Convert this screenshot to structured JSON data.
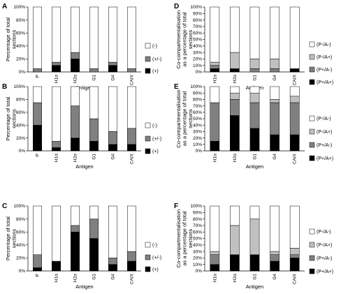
{
  "colors": {
    "(-)": "#ffffff",
    "(+/-)": "#808080",
    "(+)": "#000000",
    "(P-/A-)": "#ffffff",
    "(P-/A+)": "#c0c0c0",
    "(P+/A-)": "#808080",
    "(P+/A+)": "#000000"
  },
  "chart_data": [
    {
      "panel": "A",
      "type": "bar",
      "stacked": true,
      "categories": [
        "P",
        "H1α",
        "H2α",
        "G1",
        "G4",
        "CAIX"
      ],
      "xlabel": "Antigen",
      "ylabel": "Percentage of total sections",
      "ylim": [
        0,
        100
      ],
      "yticks": [
        "0%",
        "20%",
        "40%",
        "60%",
        "80%",
        "100%"
      ],
      "legend": [
        "(-)",
        "(+/-)",
        "(+)"
      ],
      "series": [
        {
          "name": "(+)",
          "values": [
            0,
            10,
            20,
            0,
            10,
            0
          ]
        },
        {
          "name": "(+/-)",
          "values": [
            5,
            5,
            10,
            5,
            5,
            5
          ]
        },
        {
          "name": "(-)",
          "values": [
            95,
            85,
            70,
            95,
            85,
            95
          ]
        }
      ]
    },
    {
      "panel": "B",
      "type": "bar",
      "stacked": true,
      "categories": [
        "P",
        "H1α",
        "H2α",
        "G1",
        "G4",
        "CAIX"
      ],
      "xlabel": "Antigen",
      "ylabel": "Percentage of total sections",
      "ylim": [
        0,
        100
      ],
      "yticks": [
        "0%",
        "20%",
        "40%",
        "60%",
        "80%",
        "100%"
      ],
      "legend": [
        "(-)",
        "(+/-)",
        "(+)"
      ],
      "series": [
        {
          "name": "(+)",
          "values": [
            40,
            5,
            20,
            15,
            10,
            10
          ]
        },
        {
          "name": "(+/-)",
          "values": [
            35,
            10,
            50,
            35,
            20,
            25
          ]
        },
        {
          "name": "(-)",
          "values": [
            25,
            85,
            30,
            50,
            70,
            65
          ]
        }
      ]
    },
    {
      "panel": "C",
      "type": "bar",
      "stacked": true,
      "categories": [
        "P",
        "H1α",
        "H2α",
        "G1",
        "G4",
        "CAIX"
      ],
      "xlabel": "Antigen",
      "ylabel": "Percentage of total sections",
      "ylim": [
        0,
        100
      ],
      "yticks": [
        "0%",
        "20%",
        "40%",
        "60%",
        "80%",
        "100%"
      ],
      "legend": [
        "(-)",
        "(+/-)",
        "(+)"
      ],
      "series": [
        {
          "name": "(+)",
          "values": [
            5,
            15,
            60,
            50,
            10,
            15
          ]
        },
        {
          "name": "(+/-)",
          "values": [
            20,
            0,
            10,
            30,
            10,
            15
          ]
        },
        {
          "name": "(-)",
          "values": [
            75,
            85,
            30,
            20,
            80,
            70
          ]
        }
      ]
    },
    {
      "panel": "D",
      "type": "bar",
      "stacked": true,
      "categories": [
        "H1α",
        "H2α",
        "G1",
        "G4",
        "CAIX"
      ],
      "xlabel": "Antigen",
      "ylabel": "Co-compartmentalisation as a percentage of total sections",
      "ylim": [
        0,
        100
      ],
      "yticks": [
        "0%",
        "10%",
        "20%",
        "30%",
        "40%",
        "50%",
        "60%",
        "70%",
        "80%",
        "90%",
        "100%"
      ],
      "legend": [
        "(P-/A-)",
        "(P-/A+)",
        "(P+/A-)",
        "(P+/A+)"
      ],
      "series": [
        {
          "name": "(P+/A+)",
          "values": [
            5,
            5,
            0,
            0,
            5
          ]
        },
        {
          "name": "(P+/A-)",
          "values": [
            5,
            0,
            5,
            5,
            0
          ]
        },
        {
          "name": "(P-/A+)",
          "values": [
            5,
            25,
            15,
            15,
            0
          ]
        },
        {
          "name": "(P-/A-)",
          "values": [
            85,
            70,
            80,
            80,
            95
          ]
        }
      ]
    },
    {
      "panel": "E",
      "type": "bar",
      "stacked": true,
      "categories": [
        "H1α",
        "H2α",
        "G1",
        "G4",
        "CAIX"
      ],
      "xlabel": "Antigen",
      "ylabel": "Co-compartmentalisation as a percentage of total sections",
      "ylim": [
        0,
        100
      ],
      "yticks": [
        "0%",
        "10%",
        "20%",
        "30%",
        "40%",
        "50%",
        "60%",
        "70%",
        "80%",
        "90%",
        "100%"
      ],
      "legend": [
        "(P-/A-)",
        "(P-/A+)",
        "(P+/A-)",
        "(P+/A+)"
      ],
      "series": [
        {
          "name": "(P+/A+)",
          "values": [
            15,
            55,
            35,
            25,
            25
          ]
        },
        {
          "name": "(P+/A-)",
          "values": [
            60,
            25,
            40,
            50,
            50
          ]
        },
        {
          "name": "(P-/A+)",
          "values": [
            0,
            10,
            15,
            5,
            10
          ]
        },
        {
          "name": "(P-/A-)",
          "values": [
            25,
            10,
            10,
            20,
            15
          ]
        }
      ]
    },
    {
      "panel": "F",
      "type": "bar",
      "stacked": true,
      "categories": [
        "H1α",
        "H2α",
        "G1",
        "G4",
        "CAIX"
      ],
      "xlabel": "Antigen",
      "ylabel": "Co-compartmentalisation as a percentage of total sections",
      "ylim": [
        0,
        100
      ],
      "yticks": [
        "0%",
        "10%",
        "20%",
        "30%",
        "40%",
        "50%",
        "60%",
        "70%",
        "80%",
        "90%",
        "100%"
      ],
      "legend": [
        "(P-/A-)",
        "(P-/A+)",
        "(P+/A-)",
        "(P+/A+)"
      ],
      "series": [
        {
          "name": "(P+/A+)",
          "values": [
            10,
            25,
            25,
            15,
            20
          ]
        },
        {
          "name": "(P+/A-)",
          "values": [
            15,
            0,
            0,
            10,
            5
          ]
        },
        {
          "name": "(P-/A+)",
          "values": [
            5,
            45,
            55,
            5,
            10
          ]
        },
        {
          "name": "(P-/A-)",
          "values": [
            70,
            30,
            20,
            70,
            65
          ]
        }
      ]
    }
  ]
}
